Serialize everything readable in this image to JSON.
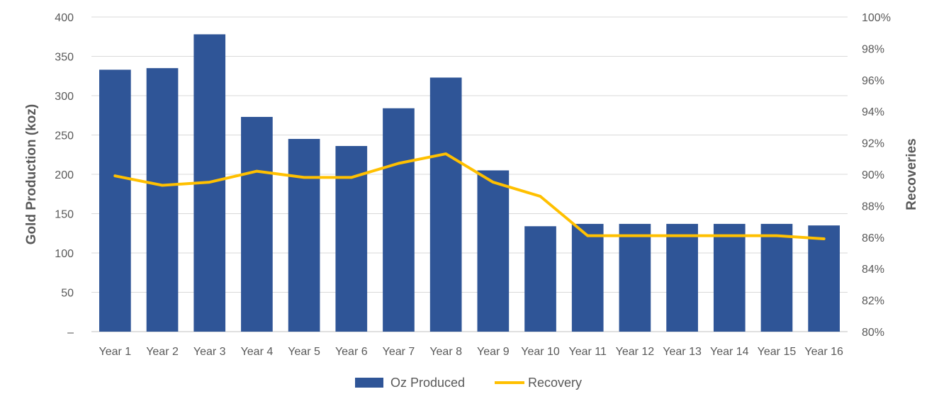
{
  "chart_data": {
    "type": "bar",
    "categories": [
      "Year 1",
      "Year 2",
      "Year 3",
      "Year 4",
      "Year 5",
      "Year 6",
      "Year 7",
      "Year 8",
      "Year 9",
      "Year 10",
      "Year 11",
      "Year 12",
      "Year 13",
      "Year 14",
      "Year 15",
      "Year 16"
    ],
    "series": [
      {
        "name": "Oz Produced",
        "type": "bar",
        "axis": "left",
        "color": "#2f5597",
        "values": [
          333,
          335,
          378,
          273,
          245,
          236,
          284,
          323,
          205,
          134,
          137,
          137,
          137,
          137,
          137,
          135
        ]
      },
      {
        "name": "Recovery",
        "type": "line",
        "axis": "right",
        "color": "#ffc000",
        "values": [
          89.9,
          89.3,
          89.5,
          90.2,
          89.8,
          89.8,
          90.7,
          91.3,
          89.5,
          88.6,
          86.1,
          86.1,
          86.1,
          86.1,
          86.1,
          85.9
        ]
      }
    ],
    "ylabel": "Gold Production (koz)",
    "y2label": "Recoveries",
    "ylim": [
      0,
      400
    ],
    "y2lim": [
      80,
      100
    ],
    "y_ticks": [
      "–",
      "50",
      "100",
      "150",
      "200",
      "250",
      "300",
      "350",
      "400"
    ],
    "y2_ticks": [
      "80%",
      "82%",
      "84%",
      "86%",
      "88%",
      "90%",
      "92%",
      "94%",
      "96%",
      "98%",
      "100%"
    ],
    "grid": true,
    "legend_position": "bottom"
  }
}
